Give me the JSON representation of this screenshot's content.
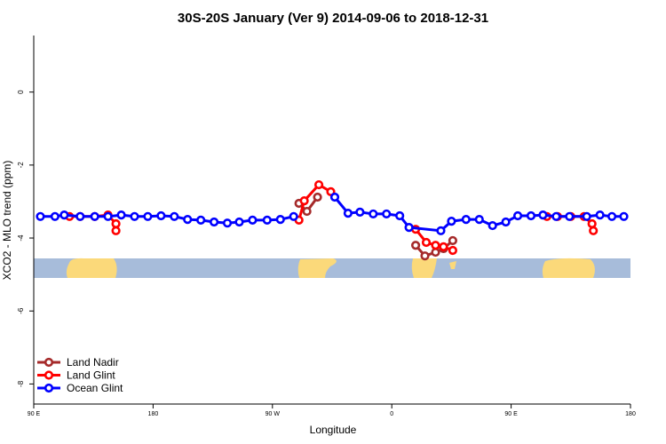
{
  "chart_data": {
    "type": "line",
    "title": "30S-20S January (Ver 9)   2014-09-06 to 2018-12-31",
    "x_label": "Longitude",
    "y_label": "XCO2 - MLO trend (ppm)",
    "xlim": [
      90,
      540
    ],
    "ylim": [
      -8.55,
      1.55
    ],
    "xticks": [
      {
        "value": 90,
        "label": "90 E"
      },
      {
        "value": 180,
        "label": "180"
      },
      {
        "value": 270,
        "label": "90 W"
      },
      {
        "value": 360,
        "label": "0"
      },
      {
        "value": 450,
        "label": "90 E"
      },
      {
        "value": 540,
        "label": "180"
      }
    ],
    "yticks": [
      0,
      -2,
      -4,
      -6,
      -8
    ],
    "legend": "bottom-left",
    "series": [
      {
        "name": "Land Nadir",
        "color": "#a52a2a",
        "x": [
          290,
          296,
          304,
          378,
          385,
          393,
          399,
          406
        ],
        "values": [
          -3.05,
          -3.27,
          -2.88,
          -4.2,
          -4.49,
          -4.39,
          -4.29,
          -4.07
        ],
        "breaks_after": [
          2
        ]
      },
      {
        "name": "Land Glint",
        "color": "#ff0000",
        "x": [
          117,
          125,
          136,
          146,
          152,
          152,
          null,
          290,
          294,
          305,
          314,
          null,
          378,
          386,
          393,
          399,
          406,
          null,
          477,
          485,
          495,
          505,
          511,
          512
        ],
        "values": [
          -3.41,
          -3.41,
          -3.41,
          -3.37,
          -3.61,
          -3.8,
          null,
          -3.51,
          -2.98,
          -2.54,
          -2.73,
          null,
          -3.76,
          -4.12,
          -4.2,
          -4.24,
          -4.34,
          null,
          -3.41,
          -3.41,
          -3.41,
          -3.41,
          -3.61,
          -3.8
        ]
      },
      {
        "name": "Ocean Glint",
        "color": "#0000ff",
        "x": [
          95,
          106,
          113,
          125,
          136,
          146,
          156,
          166,
          176,
          186,
          196,
          206,
          216,
          226,
          236,
          245,
          255,
          266,
          276,
          286,
          null,
          317,
          327,
          336,
          346,
          356,
          366,
          373,
          397,
          405,
          416,
          426,
          436,
          446,
          455,
          465,
          474,
          484,
          494,
          507,
          517,
          526,
          535
        ],
        "values": [
          -3.41,
          -3.41,
          -3.37,
          -3.41,
          -3.41,
          -3.41,
          -3.37,
          -3.41,
          -3.41,
          -3.39,
          -3.41,
          -3.49,
          -3.51,
          -3.56,
          -3.59,
          -3.56,
          -3.51,
          -3.51,
          -3.49,
          -3.41,
          null,
          -2.88,
          -3.32,
          -3.29,
          -3.34,
          -3.34,
          -3.39,
          -3.71,
          -3.8,
          -3.54,
          -3.49,
          -3.49,
          -3.66,
          -3.56,
          -3.39,
          -3.39,
          -3.37,
          -3.41,
          -3.41,
          -3.41,
          -3.37,
          -3.41,
          -3.41
        ]
      }
    ]
  }
}
